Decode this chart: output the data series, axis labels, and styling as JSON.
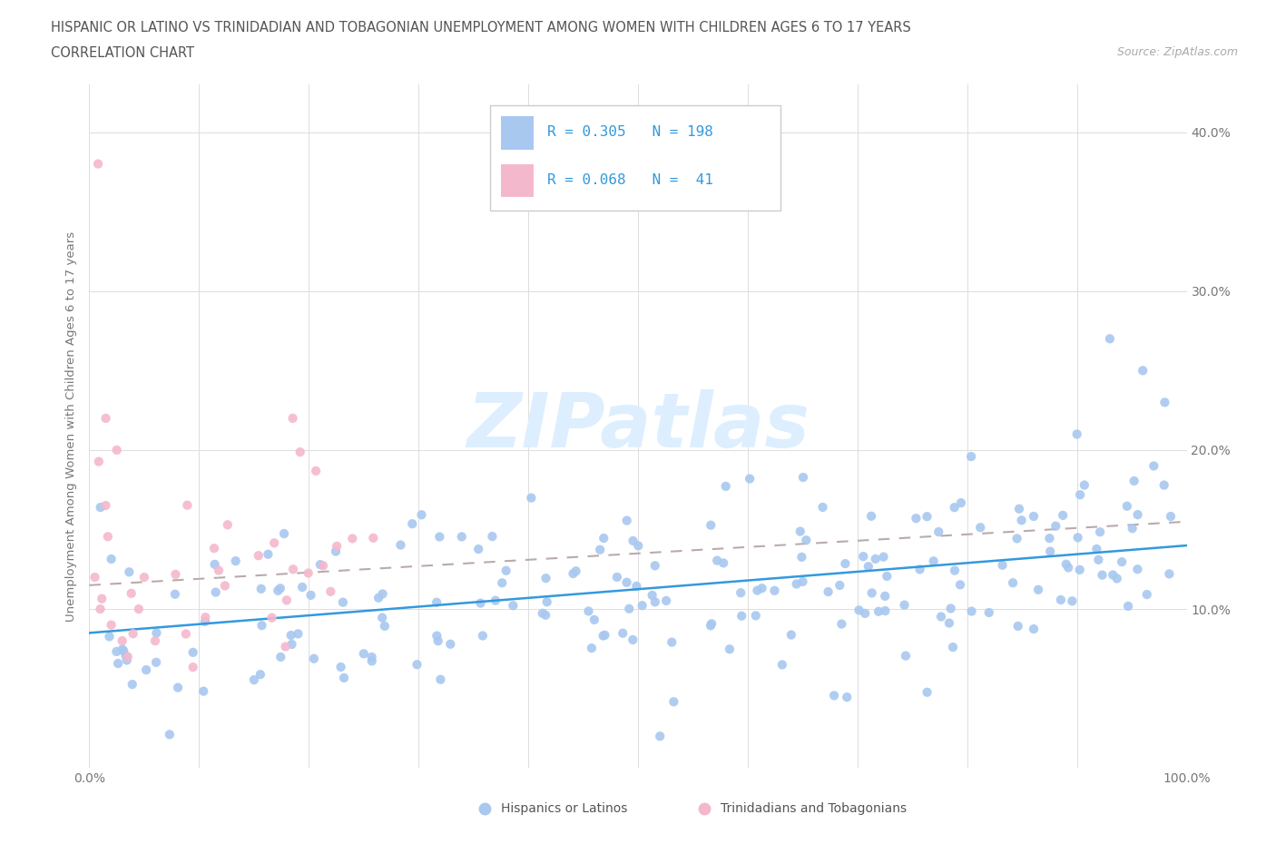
{
  "title_line1": "HISPANIC OR LATINO VS TRINIDADIAN AND TOBAGONIAN UNEMPLOYMENT AMONG WOMEN WITH CHILDREN AGES 6 TO 17 YEARS",
  "title_line2": "CORRELATION CHART",
  "source_text": "Source: ZipAtlas.com",
  "ylabel": "Unemployment Among Women with Children Ages 6 to 17 years",
  "color_blue": "#a8c8f0",
  "color_pink": "#f4b8cc",
  "color_blue_text": "#3399dd",
  "trendline_blue": "#3399dd",
  "trendline_pink": "#bbaaaa",
  "watermark_text": "ZIPatlas",
  "watermark_color": "#ddeeff",
  "bottom_label1": "Hispanics or Latinos",
  "bottom_label2": "Trinidadians and Tobagonians",
  "legend_line1": "R = 0.305   N = 198",
  "legend_line2": "R = 0.068   N =  41",
  "grid_color": "#dddddd",
  "axis_label_color": "#777777",
  "title_color": "#555555",
  "source_color": "#aaaaaa",
  "blue_intercept": 8.5,
  "blue_slope": 0.055,
  "pink_intercept": 11.5,
  "pink_slope": 0.04
}
